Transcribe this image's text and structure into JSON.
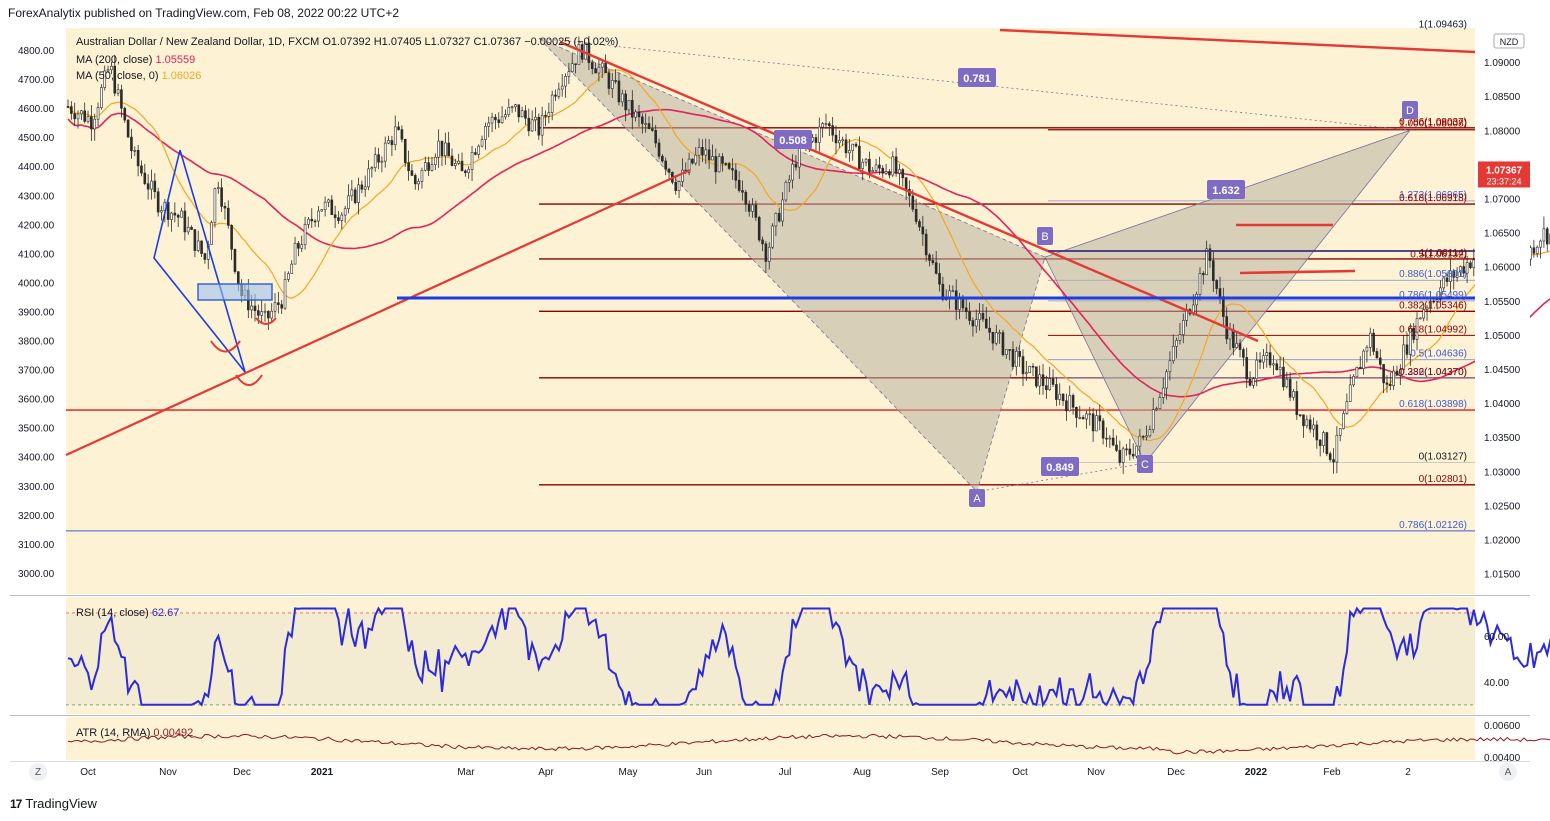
{
  "header": {
    "published": "ForexAnalytix published on TradingView.com, Feb 08, 2022 00:22 UTC+2"
  },
  "footer": {
    "brand": "TradingView",
    "logo": "17"
  },
  "buttons": {
    "left": "Z",
    "right": "A"
  },
  "colors": {
    "bg": "#fdf2d4",
    "candle": "#2b2b2b",
    "ma200": "#e0245e",
    "ma50": "#f5a623",
    "rsi": "#2b2bd9",
    "atr": "#8b1a1a",
    "trend_red": "#e53935",
    "support_blue": "#1c3de6",
    "pattern_fill": "#b9b2a0",
    "fib_dark": "#8b0000",
    "accent_purple": "#7e6bc4"
  },
  "chart_data": {
    "type": "candlestick",
    "title": "Australian Dollar / New Zealand Dollar, 1D, FXCM",
    "ohlc_label": "O1.07392 H1.07405 L1.07327 C1.07367 −0.00025 (−0.02%)",
    "legend": [
      {
        "name": "MA (200, close)",
        "value": "1.05559",
        "color": "#e0245e"
      },
      {
        "name": "MA (50, close, 0)",
        "value": "1.06026",
        "color": "#f5a623"
      }
    ],
    "currency": "NZD",
    "last_price": "1.07367",
    "countdown": "23:37:24",
    "right_axis": [
      "1.09000",
      "1.08500",
      "1.08000",
      "1.07500",
      "1.07000",
      "1.06500",
      "1.06000",
      "1.05500",
      "1.05000",
      "1.04500",
      "1.04000",
      "1.03500",
      "1.03000",
      "1.02500",
      "1.02000",
      "1.01500"
    ],
    "right_axis_range": [
      1.012,
      1.095
    ],
    "left_axis": [
      "4800.00",
      "4700.00",
      "4600.00",
      "4500.00",
      "4400.00",
      "4300.00",
      "4200.00",
      "4100.00",
      "4000.00",
      "3900.00",
      "3800.00",
      "3700.00",
      "3600.00",
      "3500.00",
      "3400.00",
      "3300.00",
      "3200.00",
      "3100.00",
      "3000.00"
    ],
    "x_axis": [
      "Oct",
      "Nov",
      "Dec",
      "2021",
      "Mar",
      "Apr",
      "May",
      "Jun",
      "Jul",
      "Aug",
      "Sep",
      "Oct",
      "Nov",
      "Dec",
      "2022",
      "Feb",
      "2"
    ],
    "fib_levels": [
      "1(1.09463)",
      "0.786(1.08037)",
      "1.000(1.08008)",
      "1.272(1.06965)",
      "0.618(1.06918)",
      "1(1.06114)",
      "0.5(1.06132)",
      "0.886(1.05801)",
      "0.786(1.05499)",
      "0.382(1.05346)",
      "0.618(1.04992)",
      "0.5(1.04636)",
      "0.236(1.04370)",
      "0.382(1.04370)",
      "0.618(1.03898)",
      "0(1.03127)",
      "0(1.02801)",
      "0.786(1.02126)"
    ],
    "pattern_points": [
      "A",
      "B",
      "C",
      "D"
    ],
    "ratios": [
      "0.781",
      "0.508",
      "1.632",
      "0.849"
    ],
    "rsi": {
      "label": "RSI (14, close)",
      "value": "62.67",
      "axis": [
        "60.00",
        "40.00"
      ],
      "range": [
        26,
        77
      ],
      "upper": 70,
      "lower": 30
    },
    "atr": {
      "label": "ATR (14, RMA)",
      "value": "0.00492",
      "axis": [
        "0.00600",
        "0.00400"
      ],
      "range": [
        0.0038,
        0.0065
      ]
    }
  }
}
